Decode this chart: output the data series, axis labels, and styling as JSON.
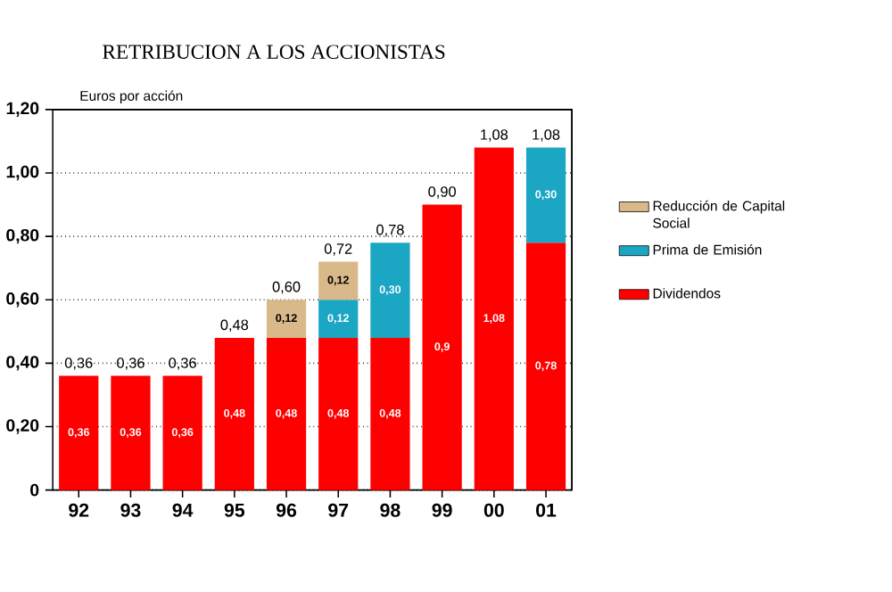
{
  "chart_data": {
    "type": "bar",
    "stacked": true,
    "title": "RETRIBUCION A LOS ACCIONISTAS",
    "ylabel": "Euros por acción",
    "categories": [
      "92",
      "93",
      "94",
      "95",
      "96",
      "97",
      "98",
      "99",
      "00",
      "01"
    ],
    "series": [
      {
        "name": "Dividendos",
        "color": "#ff0000",
        "values": [
          0.36,
          0.36,
          0.36,
          0.48,
          0.48,
          0.48,
          0.48,
          0.9,
          1.08,
          0.78
        ],
        "value_labels": [
          "0,36",
          "0,36",
          "0,36",
          "0,48",
          "0,48",
          "0,48",
          "0,48",
          "0,9",
          "1,08",
          "0,78"
        ]
      },
      {
        "name": "Prima de Emisión",
        "color": "#1ba6c4",
        "values": [
          null,
          null,
          null,
          null,
          null,
          0.12,
          0.3,
          null,
          null,
          0.3
        ],
        "value_labels": [
          null,
          null,
          null,
          null,
          null,
          "0,12",
          "0,30",
          null,
          null,
          "0,30"
        ]
      },
      {
        "name": "Reducción de Capital Social",
        "color": "#d9b98a",
        "values": [
          null,
          null,
          null,
          null,
          0.12,
          0.12,
          null,
          null,
          null,
          null
        ],
        "value_labels": [
          null,
          null,
          null,
          null,
          "0,12",
          "0,12",
          null,
          null,
          null,
          null
        ]
      }
    ],
    "totals": [
      "0,36",
      "0,36",
      "0,36",
      "0,48",
      "0,60",
      "0,72",
      "0,78",
      "0,90",
      "1,08",
      "1,08"
    ],
    "ylim": [
      0,
      1.2
    ],
    "yticks": [
      {
        "value": 0,
        "label": "0"
      },
      {
        "value": 0.2,
        "label": "0,20"
      },
      {
        "value": 0.4,
        "label": "0,40"
      },
      {
        "value": 0.6,
        "label": "0,60"
      },
      {
        "value": 0.8,
        "label": "0,80"
      },
      {
        "value": 1.0,
        "label": "1,00"
      },
      {
        "value": 1.2,
        "label": "1,20"
      }
    ],
    "grid": "y",
    "legend": "right"
  }
}
